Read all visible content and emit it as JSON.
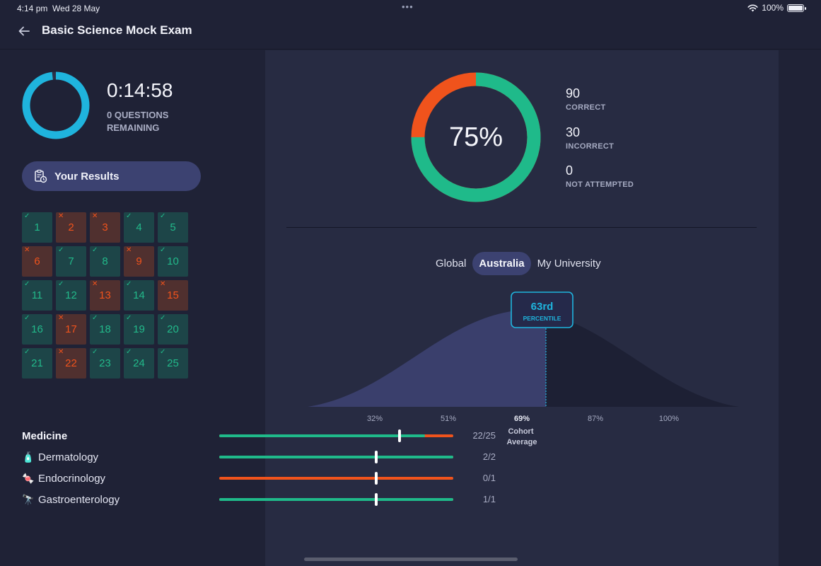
{
  "status_bar": {
    "time": "4:14 pm",
    "date": "Wed 28 May",
    "dots": "•••",
    "battery": "100%"
  },
  "header": {
    "title": "Basic Science Mock Exam"
  },
  "timer": {
    "value": "0:14:58",
    "questions_remaining": "0 QUESTIONS REMAINING",
    "progress_fraction": 0.98,
    "color": "#1fb4dd"
  },
  "results_button": {
    "label": "Your Results"
  },
  "questions": [
    {
      "n": "1",
      "status": "correct"
    },
    {
      "n": "2",
      "status": "incorrect"
    },
    {
      "n": "3",
      "status": "incorrect"
    },
    {
      "n": "4",
      "status": "correct"
    },
    {
      "n": "5",
      "status": "correct"
    },
    {
      "n": "6",
      "status": "incorrect"
    },
    {
      "n": "7",
      "status": "correct"
    },
    {
      "n": "8",
      "status": "correct"
    },
    {
      "n": "9",
      "status": "incorrect"
    },
    {
      "n": "10",
      "status": "correct"
    },
    {
      "n": "11",
      "status": "correct"
    },
    {
      "n": "12",
      "status": "correct"
    },
    {
      "n": "13",
      "status": "incorrect"
    },
    {
      "n": "14",
      "status": "correct"
    },
    {
      "n": "15",
      "status": "incorrect"
    },
    {
      "n": "16",
      "status": "correct"
    },
    {
      "n": "17",
      "status": "incorrect"
    },
    {
      "n": "18",
      "status": "correct"
    },
    {
      "n": "19",
      "status": "correct"
    },
    {
      "n": "20",
      "status": "correct"
    },
    {
      "n": "21",
      "status": "correct"
    },
    {
      "n": "22",
      "status": "incorrect"
    },
    {
      "n": "23",
      "status": "correct"
    },
    {
      "n": "24",
      "status": "correct"
    },
    {
      "n": "25",
      "status": "correct"
    }
  ],
  "score": {
    "percent_label": "75%",
    "correct": "90",
    "correct_label": "CORRECT",
    "incorrect": "30",
    "incorrect_label": "INCORRECT",
    "not_attempted": "0",
    "not_attempted_label": "NOT ATTEMPTED",
    "colors": {
      "correct": "#1fba8a",
      "incorrect": "#f0531c"
    }
  },
  "cohort_tabs": {
    "items": [
      "Global",
      "Australia",
      "My University"
    ],
    "active": "Australia"
  },
  "distribution": {
    "percentile_value": "63rd",
    "percentile_label": "PERCENTILE",
    "tick_labels": [
      "32%",
      "51%",
      "69%",
      "87%",
      "100%"
    ],
    "cohort_average_label": "Cohort Average",
    "cohort_average_tick": "69%",
    "percentile_fraction": 0.63
  },
  "topics": [
    {
      "name": "Medicine",
      "icon": "",
      "score": "22/25",
      "correct_fraction": 0.88,
      "cohort_fraction": 0.77,
      "heading": true
    },
    {
      "name": "Dermatology",
      "icon": "🧴",
      "score": "2/2",
      "correct_fraction": 1.0,
      "cohort_fraction": 0.67,
      "heading": false
    },
    {
      "name": "Endocrinology",
      "icon": "🍬",
      "score": "0/1",
      "correct_fraction": 0.0,
      "cohort_fraction": 0.67,
      "heading": false
    },
    {
      "name": "Gastroenterology",
      "icon": "🔭",
      "score": "1/1",
      "correct_fraction": 1.0,
      "cohort_fraction": 0.67,
      "heading": false
    }
  ]
}
